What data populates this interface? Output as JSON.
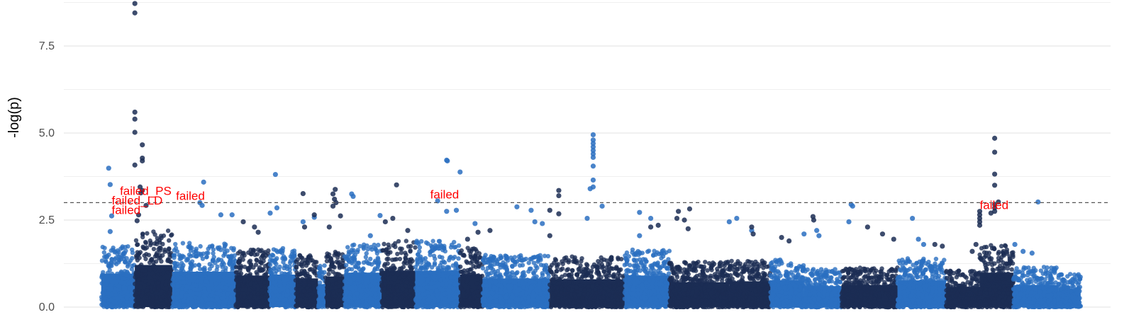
{
  "chart_data": {
    "type": "scatter",
    "title": "",
    "xlabel": "",
    "ylabel": "-log(p)",
    "ylim": [
      0,
      8.8
    ],
    "y_ticks": [
      "0.0",
      "2.5",
      "5.0",
      "7.5"
    ],
    "grid": true,
    "legend": "none",
    "threshold": {
      "value": 3.0,
      "style": "dashed"
    },
    "colors": {
      "light": "#2a6fc1",
      "dark": "#1b2d54",
      "threshold": "#555555",
      "annotation": "#ff0000",
      "grid": "#ebebeb"
    },
    "series": [
      {
        "color": "light",
        "points": [
          {
            "x": 0.01,
            "y": 3.99
          },
          {
            "x": 0.012,
            "y": 3.52
          },
          {
            "x": 0.014,
            "y": 2.62
          },
          {
            "x": 0.012,
            "y": 2.17
          },
          {
            "x": 0.137,
            "y": 3.59
          },
          {
            "x": 0.132,
            "y": 3.0
          },
          {
            "x": 0.135,
            "y": 2.92
          },
          {
            "x": 0.16,
            "y": 2.65
          },
          {
            "x": 0.175,
            "y": 2.65
          },
          {
            "x": 0.233,
            "y": 3.81
          },
          {
            "x": 0.235,
            "y": 2.85
          },
          {
            "x": 0.226,
            "y": 2.7
          },
          {
            "x": 0.27,
            "y": 2.45
          },
          {
            "x": 0.285,
            "y": 2.58
          },
          {
            "x": 0.335,
            "y": 3.25
          },
          {
            "x": 0.337,
            "y": 3.18
          },
          {
            "x": 0.36,
            "y": 2.05
          },
          {
            "x": 0.373,
            "y": 2.63
          },
          {
            "x": 0.462,
            "y": 4.22
          },
          {
            "x": 0.463,
            "y": 4.2
          },
          {
            "x": 0.48,
            "y": 3.88
          },
          {
            "x": 0.462,
            "y": 2.75
          },
          {
            "x": 0.45,
            "y": 3.05
          },
          {
            "x": 0.475,
            "y": 2.78
          },
          {
            "x": 0.5,
            "y": 2.4
          },
          {
            "x": 0.556,
            "y": 2.88
          },
          {
            "x": 0.575,
            "y": 2.78
          },
          {
            "x": 0.58,
            "y": 2.45
          },
          {
            "x": 0.59,
            "y": 2.4
          },
          {
            "x": 0.658,
            "y": 4.95
          },
          {
            "x": 0.658,
            "y": 4.8
          },
          {
            "x": 0.658,
            "y": 4.7
          },
          {
            "x": 0.658,
            "y": 4.6
          },
          {
            "x": 0.658,
            "y": 4.5
          },
          {
            "x": 0.658,
            "y": 4.4
          },
          {
            "x": 0.658,
            "y": 4.3
          },
          {
            "x": 0.658,
            "y": 4.05
          },
          {
            "x": 0.658,
            "y": 3.65
          },
          {
            "x": 0.658,
            "y": 3.45
          },
          {
            "x": 0.654,
            "y": 3.4
          },
          {
            "x": 0.67,
            "y": 2.9
          },
          {
            "x": 0.65,
            "y": 2.55
          },
          {
            "x": 0.72,
            "y": 2.72
          },
          {
            "x": 0.735,
            "y": 2.55
          },
          {
            "x": 0.72,
            "y": 2.05
          },
          {
            "x": 0.85,
            "y": 2.55
          },
          {
            "x": 0.84,
            "y": 2.45
          },
          {
            "x": 0.87,
            "y": 2.2
          },
          {
            "x": 0.957,
            "y": 2.2
          },
          {
            "x": 0.96,
            "y": 2.05
          },
          {
            "x": 0.94,
            "y": 2.1
          },
          {
            "x": 1.003,
            "y": 2.95
          },
          {
            "x": 1.005,
            "y": 2.9
          },
          {
            "x": 1.0,
            "y": 2.45
          },
          {
            "x": 1.085,
            "y": 2.55
          },
          {
            "x": 1.093,
            "y": 1.95
          },
          {
            "x": 1.1,
            "y": 1.8
          },
          {
            "x": 1.253,
            "y": 3.02
          },
          {
            "x": 1.222,
            "y": 1.8
          },
          {
            "x": 1.233,
            "y": 1.6
          },
          {
            "x": 1.245,
            "y": 1.55
          }
        ]
      },
      {
        "color": "dark",
        "points": [
          {
            "x": 0.045,
            "y": 8.72
          },
          {
            "x": 0.045,
            "y": 8.45
          },
          {
            "x": 0.045,
            "y": 5.6
          },
          {
            "x": 0.045,
            "y": 5.4
          },
          {
            "x": 0.045,
            "y": 5.02
          },
          {
            "x": 0.055,
            "y": 4.66
          },
          {
            "x": 0.055,
            "y": 4.28
          },
          {
            "x": 0.055,
            "y": 4.2
          },
          {
            "x": 0.045,
            "y": 4.08
          },
          {
            "x": 0.052,
            "y": 3.45
          },
          {
            "x": 0.055,
            "y": 3.35
          },
          {
            "x": 0.053,
            "y": 3.28
          },
          {
            "x": 0.06,
            "y": 2.92
          },
          {
            "x": 0.05,
            "y": 2.65
          },
          {
            "x": 0.048,
            "y": 2.48
          },
          {
            "x": 0.205,
            "y": 2.3
          },
          {
            "x": 0.21,
            "y": 2.15
          },
          {
            "x": 0.19,
            "y": 2.45
          },
          {
            "x": 0.27,
            "y": 3.26
          },
          {
            "x": 0.285,
            "y": 2.65
          },
          {
            "x": 0.272,
            "y": 2.3
          },
          {
            "x": 0.313,
            "y": 3.38
          },
          {
            "x": 0.31,
            "y": 3.25
          },
          {
            "x": 0.312,
            "y": 3.1
          },
          {
            "x": 0.314,
            "y": 3.0
          },
          {
            "x": 0.31,
            "y": 2.9
          },
          {
            "x": 0.32,
            "y": 2.62
          },
          {
            "x": 0.305,
            "y": 2.3
          },
          {
            "x": 0.395,
            "y": 3.51
          },
          {
            "x": 0.39,
            "y": 2.55
          },
          {
            "x": 0.38,
            "y": 2.45
          },
          {
            "x": 0.41,
            "y": 2.2
          },
          {
            "x": 0.504,
            "y": 2.15
          },
          {
            "x": 0.52,
            "y": 2.2
          },
          {
            "x": 0.49,
            "y": 1.95
          },
          {
            "x": 0.612,
            "y": 3.35
          },
          {
            "x": 0.612,
            "y": 3.2
          },
          {
            "x": 0.6,
            "y": 2.78
          },
          {
            "x": 0.612,
            "y": 2.68
          },
          {
            "x": 0.6,
            "y": 2.05
          },
          {
            "x": 0.735,
            "y": 2.3
          },
          {
            "x": 0.772,
            "y": 2.75
          },
          {
            "x": 0.77,
            "y": 2.55
          },
          {
            "x": 0.745,
            "y": 2.35
          },
          {
            "x": 0.785,
            "y": 2.25
          },
          {
            "x": 0.787,
            "y": 2.82
          },
          {
            "x": 0.78,
            "y": 2.5
          },
          {
            "x": 0.87,
            "y": 2.3
          },
          {
            "x": 0.872,
            "y": 2.1
          },
          {
            "x": 0.91,
            "y": 2.0
          },
          {
            "x": 0.92,
            "y": 1.9
          },
          {
            "x": 0.952,
            "y": 2.6
          },
          {
            "x": 0.953,
            "y": 2.5
          },
          {
            "x": 1.025,
            "y": 2.3
          },
          {
            "x": 1.045,
            "y": 2.1
          },
          {
            "x": 1.06,
            "y": 1.95
          },
          {
            "x": 1.115,
            "y": 1.8
          },
          {
            "x": 1.125,
            "y": 1.75
          },
          {
            "x": 1.195,
            "y": 4.85
          },
          {
            "x": 1.195,
            "y": 4.45
          },
          {
            "x": 1.195,
            "y": 3.82
          },
          {
            "x": 1.195,
            "y": 3.5
          },
          {
            "x": 1.2,
            "y": 3.02
          },
          {
            "x": 1.195,
            "y": 2.95
          },
          {
            "x": 1.195,
            "y": 2.85
          },
          {
            "x": 1.19,
            "y": 2.7
          },
          {
            "x": 1.195,
            "y": 2.75
          },
          {
            "x": 1.175,
            "y": 2.75
          },
          {
            "x": 1.175,
            "y": 2.65
          },
          {
            "x": 1.175,
            "y": 2.55
          },
          {
            "x": 1.175,
            "y": 2.45
          },
          {
            "x": 1.175,
            "y": 2.35
          },
          {
            "x": 1.17,
            "y": 1.8
          },
          {
            "x": 1.165,
            "y": 1.6
          }
        ]
      }
    ],
    "bands": [
      {
        "color": "light",
        "x0": 0.0,
        "x1": 0.045,
        "h": 1.75
      },
      {
        "color": "dark",
        "x0": 0.045,
        "x1": 0.095,
        "h": 2.2
      },
      {
        "color": "light",
        "x0": 0.095,
        "x1": 0.18,
        "h": 1.85
      },
      {
        "color": "dark",
        "x0": 0.18,
        "x1": 0.225,
        "h": 1.65
      },
      {
        "color": "light",
        "x0": 0.225,
        "x1": 0.26,
        "h": 1.7
      },
      {
        "color": "dark",
        "x0": 0.26,
        "x1": 0.29,
        "h": 1.5
      },
      {
        "color": "light",
        "x0": 0.29,
        "x1": 0.3,
        "h": 1.2
      },
      {
        "color": "dark",
        "x0": 0.3,
        "x1": 0.325,
        "h": 1.6
      },
      {
        "color": "light",
        "x0": 0.325,
        "x1": 0.375,
        "h": 1.8
      },
      {
        "color": "dark",
        "x0": 0.375,
        "x1": 0.42,
        "h": 1.9
      },
      {
        "color": "light",
        "x0": 0.42,
        "x1": 0.48,
        "h": 1.9
      },
      {
        "color": "dark",
        "x0": 0.48,
        "x1": 0.51,
        "h": 1.7
      },
      {
        "color": "light",
        "x0": 0.51,
        "x1": 0.6,
        "h": 1.5
      },
      {
        "color": "dark",
        "x0": 0.6,
        "x1": 0.7,
        "h": 1.45
      },
      {
        "color": "light",
        "x0": 0.7,
        "x1": 0.76,
        "h": 1.65
      },
      {
        "color": "dark",
        "x0": 0.76,
        "x1": 0.84,
        "h": 1.3
      },
      {
        "color": "dark",
        "x0": 0.84,
        "x1": 0.895,
        "h": 1.35
      },
      {
        "color": "light",
        "x0": 0.895,
        "x1": 0.94,
        "h": 1.4
      },
      {
        "color": "light",
        "x0": 0.94,
        "x1": 0.99,
        "h": 1.1
      },
      {
        "color": "dark",
        "x0": 0.99,
        "x1": 1.065,
        "h": 1.15
      },
      {
        "color": "light",
        "x0": 1.065,
        "x1": 1.13,
        "h": 1.4
      },
      {
        "color": "dark",
        "x0": 1.13,
        "x1": 1.175,
        "h": 1.05
      },
      {
        "color": "dark",
        "x0": 1.175,
        "x1": 1.22,
        "h": 1.8
      },
      {
        "color": "light",
        "x0": 1.22,
        "x1": 1.28,
        "h": 1.15
      },
      {
        "color": "light",
        "x0": 1.28,
        "x1": 1.31,
        "h": 0.95
      }
    ],
    "xlim": [
      -0.05,
      1.35
    ],
    "annotations": [
      {
        "text": "failed_PS",
        "x": 0.025,
        "y": 3.22
      },
      {
        "text": "failed_LD",
        "x": 0.014,
        "y": 2.95
      },
      {
        "text": "failed",
        "x": 0.014,
        "y": 2.67
      },
      {
        "text": "failed",
        "x": 0.1,
        "y": 3.08
      },
      {
        "text": "failed",
        "x": 0.44,
        "y": 3.12
      },
      {
        "text": "failed",
        "x": 1.175,
        "y": 2.82
      }
    ]
  }
}
